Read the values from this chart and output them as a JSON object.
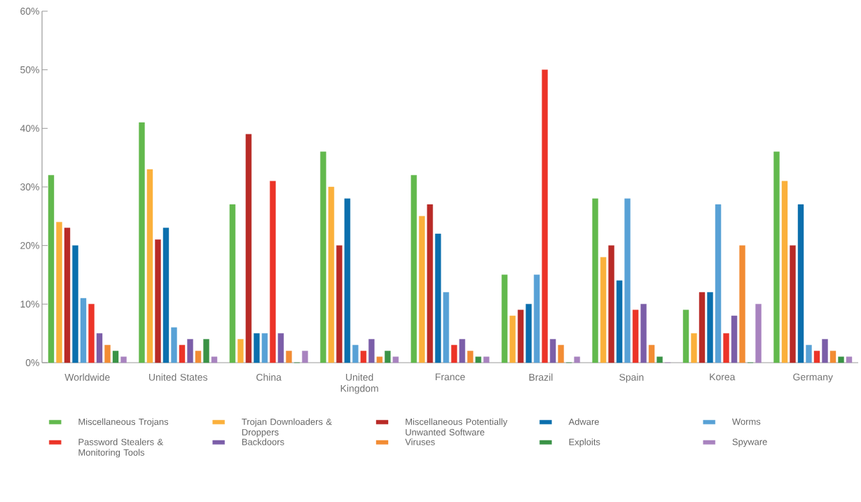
{
  "chart_data": {
    "type": "bar",
    "categories": [
      "Worldwide",
      "United States",
      "China",
      "United Kingdom",
      "France",
      "Brazil",
      "Spain",
      "Korea",
      "Germany"
    ],
    "series": [
      {
        "name": "Miscellaneous Trojans",
        "color": "#62b94d",
        "values": [
          32,
          41,
          27,
          36,
          32,
          15,
          28,
          9,
          36
        ]
      },
      {
        "name": "Trojan Downloaders & Droppers",
        "color": "#fbb03b",
        "values": [
          24,
          33,
          4,
          30,
          25,
          8,
          18,
          5,
          31
        ]
      },
      {
        "name": "Miscellaneous Potentially Unwanted Software",
        "color": "#b92a26",
        "values": [
          23,
          21,
          39,
          20,
          27,
          9,
          20,
          12,
          20
        ]
      },
      {
        "name": "Adware",
        "color": "#0b6fad",
        "values": [
          20,
          23,
          5,
          28,
          22,
          10,
          14,
          12,
          27
        ]
      },
      {
        "name": "Worms",
        "color": "#58a1d6",
        "values": [
          11,
          6,
          5,
          3,
          12,
          15,
          28,
          27,
          3
        ]
      },
      {
        "name": "Password Stealers & Monitoring Tools",
        "color": "#ec3428",
        "values": [
          10,
          3,
          31,
          2,
          3,
          50,
          9,
          5,
          2
        ]
      },
      {
        "name": "Backdoors",
        "color": "#7b5ea8",
        "values": [
          5,
          4,
          5,
          4,
          4,
          4,
          10,
          8,
          4
        ]
      },
      {
        "name": "Viruses",
        "color": "#f28c33",
        "values": [
          3,
          2,
          2,
          1,
          2,
          3,
          3,
          20,
          2
        ]
      },
      {
        "name": "Exploits",
        "color": "#3a9346",
        "values": [
          2,
          4,
          0,
          2,
          1,
          0,
          1,
          0,
          1
        ]
      },
      {
        "name": "Spyware",
        "color": "#a883bf",
        "values": [
          1,
          1,
          2,
          1,
          1,
          1,
          0,
          10,
          1
        ]
      }
    ],
    "ylim": [
      0,
      60
    ],
    "yticks": [
      {
        "value": 0,
        "label": "0%"
      },
      {
        "value": 10,
        "label": "10%"
      },
      {
        "value": 20,
        "label": "20%"
      },
      {
        "value": 30,
        "label": "30%"
      },
      {
        "value": 40,
        "label": "40%"
      },
      {
        "value": 50,
        "label": "50%"
      },
      {
        "value": 60,
        "label": "60%"
      }
    ],
    "legend": "bottom",
    "grid": false
  }
}
